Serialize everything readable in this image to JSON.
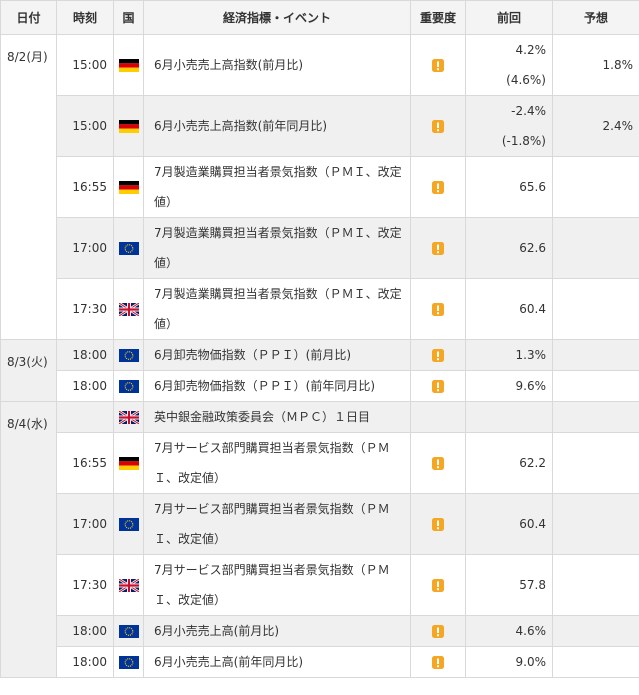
{
  "header": {
    "columns": [
      "日付",
      "時刻",
      "国",
      "経済指標・イベント",
      "重要度",
      "前回",
      "予想"
    ]
  },
  "days": [
    {
      "date": "8/2(月)",
      "events": [
        {
          "time": "15:00",
          "event": "6月小売売上高指数(前月比)",
          "previous": [
            "4.2%",
            "(4.6%)"
          ],
          "forecast": "1.8%"
        },
        {
          "time": "15:00",
          "event": "6月小売売上高指数(前年同月比)",
          "previous": [
            "-2.4%",
            "(-1.8%)"
          ],
          "forecast": "2.4%"
        },
        {
          "time": "16:55",
          "event": "7月製造業購買担当者景気指数（ＰＭＩ、改定値）",
          "previous": [
            "65.6"
          ]
        },
        {
          "time": "17:00",
          "event": "7月製造業購買担当者景気指数（ＰＭＩ、改定値）",
          "previous": [
            "62.6"
          ]
        },
        {
          "time": "17:30",
          "event": "7月製造業購買担当者景気指数（ＰＭＩ、改定値）",
          "previous": [
            "60.4"
          ]
        }
      ]
    },
    {
      "date": "8/3(火)",
      "events": [
        {
          "time": "18:00",
          "event": "6月卸売物価指数（ＰＰＩ）(前月比)",
          "previous": [
            "1.3%"
          ]
        },
        {
          "time": "18:00",
          "event": "6月卸売物価指数（ＰＰＩ）(前年同月比)",
          "previous": [
            "9.6%"
          ]
        }
      ]
    },
    {
      "date": "8/4(水)",
      "events": [
        {
          "event": "英中銀金融政策委員会（ＭＰＣ）１日目"
        },
        {
          "time": "16:55",
          "event": "7月サービス部門購買担当者景気指数（ＰＭＩ、改定値）",
          "previous": [
            "62.2"
          ]
        },
        {
          "time": "17:00",
          "event": "7月サービス部門購買担当者景気指数（ＰＭＩ、改定値）",
          "previous": [
            "60.4"
          ]
        },
        {
          "time": "17:30",
          "event": "7月サービス部門購買担当者景気指数（ＰＭＩ、改定値）",
          "previous": [
            "57.8"
          ]
        },
        {
          "time": "18:00",
          "event": "6月小売売上高(前月比)",
          "previous": [
            "4.6%"
          ]
        },
        {
          "time": "18:00",
          "event": "6月小売売上高(前年同月比)",
          "previous": [
            "9.0%"
          ]
        }
      ]
    }
  ]
}
